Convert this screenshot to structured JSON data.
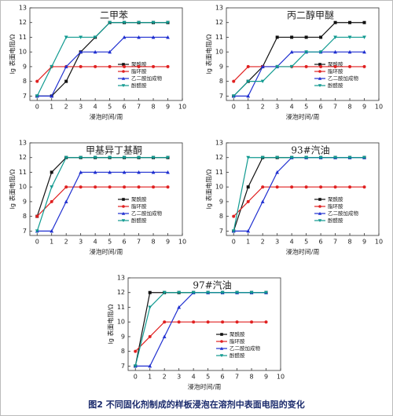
{
  "chart_data": [
    {
      "type": "line",
      "title": "二甲苯",
      "x_label": "浸泡时间/周",
      "y_label": "lg 表面电阻/Ω",
      "x": [
        0,
        1,
        2,
        3,
        4,
        5,
        6,
        7,
        8,
        9
      ],
      "xlim": [
        -0.5,
        10
      ],
      "xticks": [
        0,
        1,
        2,
        3,
        4,
        5,
        6,
        7,
        8,
        9,
        10
      ],
      "ylim": [
        6.7,
        13
      ],
      "yticks": [
        7,
        8,
        9,
        10,
        11,
        12,
        13
      ],
      "series": [
        {
          "name": "聚酰胺",
          "color": "#111111",
          "marker": "square",
          "values": [
            7,
            7,
            8,
            10,
            11,
            12,
            12,
            12,
            12,
            12
          ]
        },
        {
          "name": "脂环胺",
          "color": "#e02020",
          "marker": "circle",
          "values": [
            8,
            9,
            9,
            9,
            9,
            9,
            9,
            9,
            9,
            9
          ]
        },
        {
          "name": "乙二胺加成物",
          "color": "#1f2fd0",
          "marker": "triangle",
          "values": [
            7,
            7,
            9,
            10,
            10,
            10,
            11,
            11,
            11,
            11
          ]
        },
        {
          "name": "酚醛胺",
          "color": "#109a90",
          "marker": "down",
          "values": [
            7,
            9,
            11,
            11,
            11,
            12,
            12,
            12,
            12,
            12
          ]
        }
      ]
    },
    {
      "type": "line",
      "title": "丙二醇甲醚",
      "x_label": "浸泡时间/周",
      "y_label": "lg 表面电阻/Ω",
      "x": [
        0,
        1,
        2,
        3,
        4,
        5,
        6,
        7,
        8,
        9
      ],
      "xlim": [
        -0.5,
        10
      ],
      "xticks": [
        0,
        1,
        2,
        3,
        4,
        5,
        6,
        7,
        8,
        9,
        10
      ],
      "ylim": [
        6.7,
        13
      ],
      "yticks": [
        7,
        8,
        9,
        10,
        11,
        12,
        13
      ],
      "series": [
        {
          "name": "聚酰胺",
          "color": "#111111",
          "marker": "square",
          "values": [
            7,
            8,
            9,
            11,
            11,
            11,
            11,
            12,
            12,
            12
          ]
        },
        {
          "name": "脂环胺",
          "color": "#e02020",
          "marker": "circle",
          "values": [
            8,
            9,
            9,
            9,
            9,
            9,
            9,
            9,
            9,
            9
          ]
        },
        {
          "name": "乙二胺加成物",
          "color": "#1f2fd0",
          "marker": "triangle",
          "values": [
            7,
            7,
            9,
            9,
            10,
            10,
            10,
            10,
            10,
            10
          ]
        },
        {
          "name": "酚醛胺",
          "color": "#109a90",
          "marker": "down",
          "values": [
            7,
            8,
            8,
            9,
            9,
            10,
            10,
            11,
            11,
            11
          ]
        }
      ]
    },
    {
      "type": "line",
      "title": "甲基异丁基酮",
      "x_label": "浸泡时间/周",
      "y_label": "lg 表面电阻/Ω",
      "x": [
        0,
        1,
        2,
        3,
        4,
        5,
        6,
        7,
        8,
        9
      ],
      "xlim": [
        -0.5,
        10
      ],
      "xticks": [
        0,
        1,
        2,
        3,
        4,
        5,
        6,
        7,
        8,
        9,
        10
      ],
      "ylim": [
        6.7,
        13
      ],
      "yticks": [
        7,
        8,
        9,
        10,
        11,
        12,
        13
      ],
      "series": [
        {
          "name": "聚酰胺",
          "color": "#111111",
          "marker": "square",
          "values": [
            8,
            11,
            12,
            12,
            12,
            12,
            12,
            12,
            12,
            12
          ]
        },
        {
          "name": "脂环胺",
          "color": "#e02020",
          "marker": "circle",
          "values": [
            8,
            9,
            10,
            10,
            10,
            10,
            10,
            10,
            10,
            10
          ]
        },
        {
          "name": "乙二胺加成物",
          "color": "#1f2fd0",
          "marker": "triangle",
          "values": [
            7,
            7,
            9,
            11,
            11,
            11,
            11,
            11,
            11,
            11
          ]
        },
        {
          "name": "酚醛胺",
          "color": "#109a90",
          "marker": "down",
          "values": [
            7,
            10,
            12,
            12,
            12,
            12,
            12,
            12,
            12,
            12
          ]
        }
      ]
    },
    {
      "type": "line",
      "title": "93#汽油",
      "x_label": "浸泡时间/周",
      "y_label": "lg 表面电阻/Ω",
      "x": [
        0,
        1,
        2,
        3,
        4,
        5,
        6,
        7,
        8,
        9
      ],
      "xlim": [
        -0.5,
        10
      ],
      "xticks": [
        0,
        1,
        2,
        3,
        4,
        5,
        6,
        7,
        8,
        9,
        10
      ],
      "ylim": [
        6.7,
        13
      ],
      "yticks": [
        7,
        8,
        9,
        10,
        11,
        12,
        13
      ],
      "series": [
        {
          "name": "聚酰胺",
          "color": "#111111",
          "marker": "square",
          "values": [
            7,
            10,
            12,
            12,
            12,
            12,
            12,
            12,
            12,
            12
          ]
        },
        {
          "name": "脂环胺",
          "color": "#e02020",
          "marker": "circle",
          "values": [
            8,
            9,
            10,
            10,
            10,
            10,
            10,
            10,
            10,
            10
          ]
        },
        {
          "name": "乙二胺加成物",
          "color": "#1f2fd0",
          "marker": "triangle",
          "values": [
            7,
            7,
            9,
            11,
            12,
            12,
            12,
            12,
            12,
            12
          ]
        },
        {
          "name": "酚醛胺",
          "color": "#109a90",
          "marker": "down",
          "values": [
            7,
            12,
            12,
            12,
            12,
            12,
            12,
            12,
            12,
            12
          ]
        }
      ]
    },
    {
      "type": "line",
      "title": "97#汽油",
      "x_label": "浸泡时间/周",
      "y_label": "lg 表面电阻/Ω",
      "x": [
        0,
        1,
        2,
        3,
        4,
        5,
        6,
        7,
        8,
        9
      ],
      "xlim": [
        -0.5,
        10
      ],
      "xticks": [
        0,
        1,
        2,
        3,
        4,
        5,
        6,
        7,
        8,
        9,
        10
      ],
      "ylim": [
        6.7,
        13
      ],
      "yticks": [
        7,
        8,
        9,
        10,
        11,
        12,
        13
      ],
      "series": [
        {
          "name": "聚酰胺",
          "color": "#111111",
          "marker": "square",
          "values": [
            7,
            12,
            12,
            12,
            12,
            12,
            12,
            12,
            12,
            12
          ]
        },
        {
          "name": "脂环胺",
          "color": "#e02020",
          "marker": "circle",
          "values": [
            8,
            9,
            10,
            10,
            10,
            10,
            10,
            10,
            10,
            10
          ]
        },
        {
          "name": "乙二胺加成物",
          "color": "#1f2fd0",
          "marker": "triangle",
          "values": [
            7,
            7,
            9,
            11,
            12,
            12,
            12,
            12,
            12,
            12
          ]
        },
        {
          "name": "酚醛胺",
          "color": "#109a90",
          "marker": "down",
          "values": [
            7,
            11,
            12,
            12,
            12,
            12,
            12,
            12,
            12,
            12
          ]
        }
      ]
    }
  ],
  "caption": "图2 不同固化剂制成的样板浸泡在溶剂中表面电阻的变化"
}
